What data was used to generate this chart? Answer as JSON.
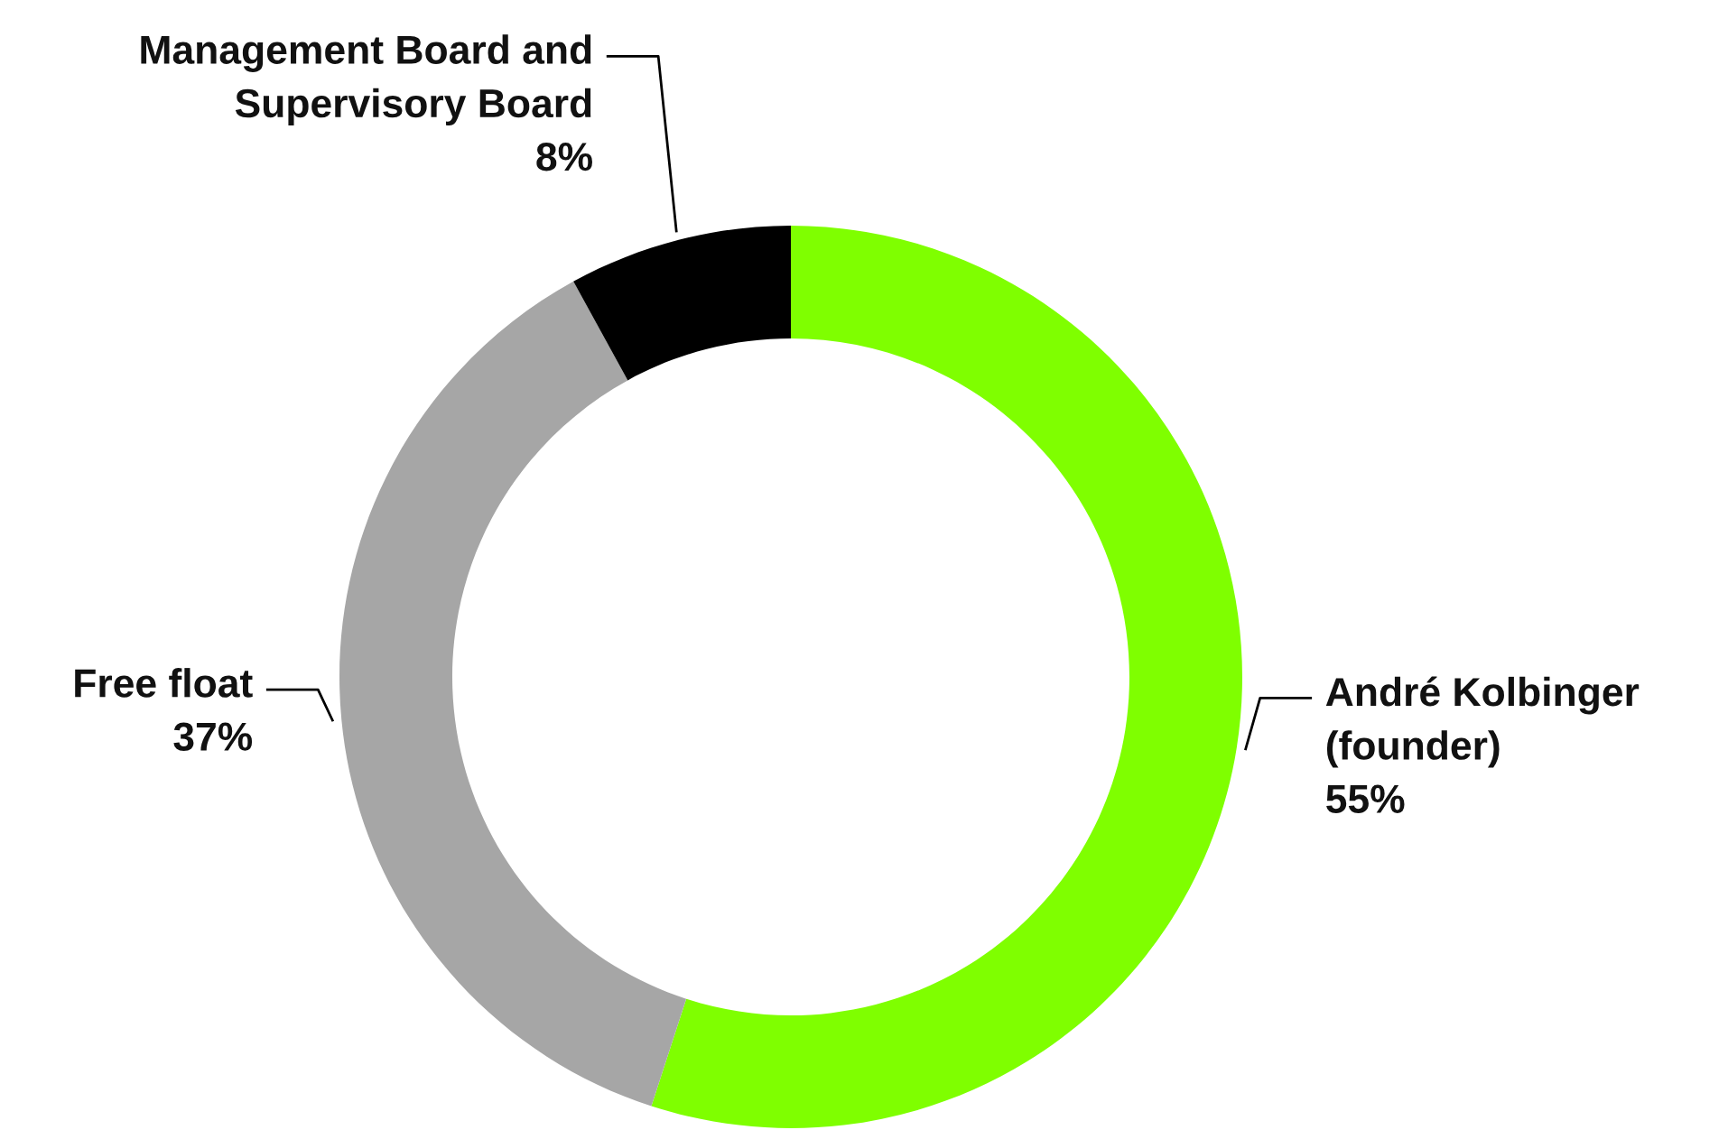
{
  "chart_data": {
    "type": "donut",
    "categories": [
      "André Kolbinger\n(founder)",
      "Free float",
      "Management Board and\nSupervisory Board"
    ],
    "values": [
      55,
      37,
      8
    ],
    "colors": [
      "#7fff00",
      "#a6a6a6",
      "#000000"
    ],
    "value_labels": [
      "55%",
      "37%",
      "8%"
    ],
    "legend": false
  }
}
